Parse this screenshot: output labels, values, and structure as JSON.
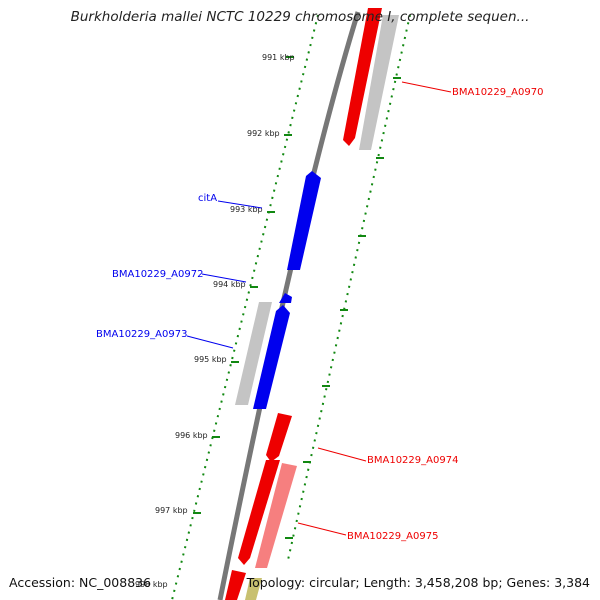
{
  "title": "Burkholderia mallei NCTC 10229 chromosome I, complete sequen...",
  "footer": {
    "accession": "Accession: NC_008836",
    "summary": "Topology: circular; Length: 3,458,208 bp; Genes: 3,384"
  },
  "ruler": {
    "ticks": [
      "991 kbp",
      "992 kbp",
      "993 kbp",
      "994 kbp",
      "995 kbp",
      "996 kbp",
      "997 kbp",
      "998 kbp"
    ]
  },
  "colors": {
    "forward_strand": "#ee0000",
    "reverse_strand": "#0000ee",
    "other_feature": "#bbbbbb",
    "backbone": "#777777",
    "ruler_dots": "#118811"
  },
  "genes": [
    {
      "label": "BMA10229_A0970",
      "strand": "forward"
    },
    {
      "label": "citA",
      "strand": "reverse"
    },
    {
      "label": "BMA10229_A0972",
      "strand": "reverse"
    },
    {
      "label": "BMA10229_A0973",
      "strand": "reverse"
    },
    {
      "label": "BMA10229_A0974",
      "strand": "forward"
    },
    {
      "label": "BMA10229_A0975",
      "strand": "forward"
    }
  ]
}
